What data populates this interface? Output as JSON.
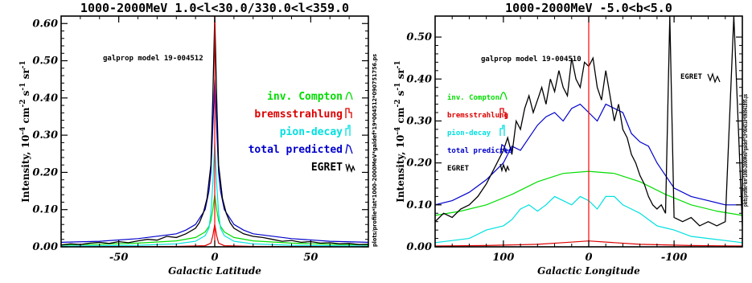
{
  "colors": {
    "inv_compton": "#00dd00",
    "bremsstrahlung": "#dd0000",
    "pion_decay": "#00e0e0",
    "total_predicted": "#0000cc",
    "egret": "#000000",
    "marker": "#ff0000"
  },
  "side_label": "plots/profile*lat*1000-2000MeV*galdef*19*004512*090751756.ps",
  "side_label_right": "plots/profile*lon*1000-2000MeV*galdef*19*004510*090941895.ps",
  "chart_data": [
    {
      "type": "line",
      "title": "1000-2000MeV   1.0<l<30.0/330.0<l<359.0",
      "model_label": "galprop model 19-004512",
      "xlabel": "Galactic Latitude",
      "ylabel": "Intensity, 10^-4 cm^-2 s^-1 sr^-1",
      "xlim": [
        -80,
        80
      ],
      "ylim": [
        0,
        0.62
      ],
      "x_reversed": false,
      "xticks": [
        -50,
        0,
        50
      ],
      "yticks": [
        0.0,
        0.1,
        0.2,
        0.3,
        0.4,
        0.5,
        0.6
      ],
      "ytick_labels": [
        "0.00",
        "0.10",
        "0.20",
        "0.30",
        "0.40",
        "0.50",
        "0.60"
      ],
      "legend": [
        "inv. Compton",
        "bremsstrahlung",
        "pion-decay",
        "total predicted",
        "EGRET"
      ],
      "legend_position": "right",
      "series": [
        {
          "name": "inv. Compton",
          "x": [
            -80,
            -60,
            -40,
            -20,
            -10,
            -5,
            -3,
            -2,
            -1,
            0,
            1,
            2,
            3,
            5,
            10,
            20,
            40,
            60,
            80
          ],
          "values": [
            0.005,
            0.007,
            0.01,
            0.016,
            0.025,
            0.04,
            0.055,
            0.07,
            0.1,
            0.14,
            0.1,
            0.07,
            0.055,
            0.04,
            0.025,
            0.016,
            0.01,
            0.007,
            0.005
          ]
        },
        {
          "name": "bremsstrahlung",
          "x": [
            -80,
            -20,
            -5,
            -2,
            -1,
            0,
            1,
            2,
            5,
            20,
            80
          ],
          "values": [
            0.0,
            0.001,
            0.003,
            0.01,
            0.03,
            0.06,
            0.03,
            0.01,
            0.003,
            0.001,
            0.0
          ]
        },
        {
          "name": "pion-decay",
          "x": [
            -80,
            -40,
            -20,
            -10,
            -5,
            -3,
            -2,
            -1,
            0,
            1,
            2,
            3,
            5,
            10,
            20,
            40,
            80
          ],
          "values": [
            0.002,
            0.004,
            0.008,
            0.015,
            0.03,
            0.05,
            0.09,
            0.17,
            0.28,
            0.17,
            0.09,
            0.05,
            0.03,
            0.015,
            0.008,
            0.004,
            0.002
          ]
        },
        {
          "name": "total predicted",
          "x": [
            -80,
            -60,
            -40,
            -20,
            -15,
            -10,
            -5,
            -3,
            -2,
            -1,
            0,
            1,
            2,
            3,
            5,
            10,
            15,
            20,
            40,
            60,
            80
          ],
          "values": [
            0.012,
            0.015,
            0.022,
            0.035,
            0.045,
            0.06,
            0.1,
            0.15,
            0.2,
            0.32,
            0.45,
            0.32,
            0.2,
            0.15,
            0.1,
            0.06,
            0.045,
            0.035,
            0.022,
            0.015,
            0.012
          ]
        },
        {
          "name": "EGRET",
          "x": [
            -80,
            -75,
            -70,
            -65,
            -60,
            -55,
            -50,
            -45,
            -40,
            -35,
            -30,
            -25,
            -20,
            -15,
            -10,
            -8,
            -6,
            -4,
            -2,
            -1,
            0,
            1,
            2,
            4,
            6,
            8,
            10,
            15,
            20,
            25,
            30,
            35,
            40,
            45,
            50,
            55,
            60,
            65,
            70,
            75,
            80
          ],
          "values": [
            0.005,
            0.008,
            0.006,
            0.01,
            0.012,
            0.009,
            0.014,
            0.011,
            0.016,
            0.02,
            0.018,
            0.028,
            0.025,
            0.035,
            0.05,
            0.065,
            0.09,
            0.13,
            0.22,
            0.4,
            0.62,
            0.4,
            0.22,
            0.13,
            0.09,
            0.065,
            0.05,
            0.035,
            0.028,
            0.025,
            0.02,
            0.015,
            0.017,
            0.012,
            0.014,
            0.01,
            0.011,
            0.008,
            0.009,
            0.006,
            0.007
          ]
        }
      ]
    },
    {
      "type": "line",
      "title": "1000-2000MeV   -5.0<b<5.0",
      "model_label": "galprop model 19-004510",
      "xlabel": "Galactic Longitude",
      "ylabel": "Intensity, 10^-4 cm^-2 s^-1 sr^-1",
      "xlim": [
        180,
        -180
      ],
      "ylim": [
        0,
        0.55
      ],
      "x_reversed": true,
      "xticks": [
        100,
        0,
        -100
      ],
      "yticks": [
        0.0,
        0.1,
        0.2,
        0.3,
        0.4,
        0.5
      ],
      "ytick_labels": [
        "0.00",
        "0.10",
        "0.20",
        "0.30",
        "0.40",
        "0.50"
      ],
      "legend": [
        "inv. Compton",
        "bremsstrahlung",
        "pion-decay",
        "total predicted",
        "EGRET"
      ],
      "legend_position": "upper-left",
      "series": [
        {
          "name": "inv. Compton",
          "x": [
            180,
            150,
            120,
            90,
            60,
            30,
            0,
            -30,
            -60,
            -90,
            -120,
            -150,
            -180
          ],
          "values": [
            0.075,
            0.085,
            0.1,
            0.125,
            0.155,
            0.175,
            0.18,
            0.175,
            0.155,
            0.125,
            0.1,
            0.085,
            0.075
          ]
        },
        {
          "name": "bremsstrahlung",
          "x": [
            180,
            120,
            60,
            30,
            0,
            -30,
            -60,
            -120,
            -180
          ],
          "values": [
            0.002,
            0.003,
            0.006,
            0.01,
            0.014,
            0.01,
            0.006,
            0.003,
            0.002
          ]
        },
        {
          "name": "pion-decay",
          "x": [
            180,
            160,
            140,
            120,
            100,
            90,
            80,
            70,
            60,
            50,
            40,
            30,
            20,
            10,
            0,
            -10,
            -20,
            -30,
            -40,
            -50,
            -60,
            -70,
            -80,
            -90,
            -100,
            -120,
            -140,
            -160,
            -180
          ],
          "values": [
            0.01,
            0.015,
            0.02,
            0.04,
            0.05,
            0.065,
            0.09,
            0.1,
            0.085,
            0.1,
            0.12,
            0.11,
            0.1,
            0.12,
            0.11,
            0.09,
            0.12,
            0.12,
            0.1,
            0.09,
            0.08,
            0.065,
            0.05,
            0.045,
            0.04,
            0.025,
            0.02,
            0.015,
            0.01
          ]
        },
        {
          "name": "total predicted",
          "x": [
            180,
            160,
            140,
            120,
            100,
            90,
            80,
            70,
            60,
            50,
            40,
            30,
            20,
            10,
            0,
            -10,
            -20,
            -30,
            -40,
            -50,
            -60,
            -70,
            -80,
            -90,
            -100,
            -120,
            -140,
            -160,
            -180
          ],
          "values": [
            0.1,
            0.11,
            0.13,
            0.16,
            0.2,
            0.24,
            0.23,
            0.26,
            0.29,
            0.31,
            0.32,
            0.3,
            0.33,
            0.34,
            0.32,
            0.3,
            0.34,
            0.33,
            0.32,
            0.27,
            0.25,
            0.24,
            0.2,
            0.17,
            0.14,
            0.12,
            0.11,
            0.1,
            0.1
          ]
        },
        {
          "name": "EGRET",
          "x": [
            180,
            170,
            160,
            150,
            140,
            130,
            120,
            110,
            100,
            95,
            90,
            85,
            80,
            75,
            70,
            65,
            60,
            55,
            50,
            45,
            40,
            35,
            30,
            25,
            20,
            15,
            10,
            5,
            0,
            -5,
            -10,
            -15,
            -20,
            -25,
            -30,
            -35,
            -40,
            -45,
            -50,
            -55,
            -60,
            -65,
            -70,
            -75,
            -80,
            -85,
            -90,
            -95,
            -100,
            -110,
            -120,
            -130,
            -140,
            -150,
            -160,
            -170,
            -180
          ],
          "values": [
            0.06,
            0.08,
            0.07,
            0.09,
            0.1,
            0.12,
            0.15,
            0.19,
            0.23,
            0.26,
            0.22,
            0.3,
            0.28,
            0.33,
            0.36,
            0.32,
            0.35,
            0.38,
            0.34,
            0.4,
            0.37,
            0.42,
            0.38,
            0.36,
            0.45,
            0.4,
            0.38,
            0.44,
            0.43,
            0.45,
            0.38,
            0.35,
            0.42,
            0.36,
            0.3,
            0.34,
            0.28,
            0.26,
            0.22,
            0.2,
            0.17,
            0.15,
            0.12,
            0.1,
            0.09,
            0.1,
            0.08,
            0.55,
            0.07,
            0.06,
            0.07,
            0.05,
            0.06,
            0.05,
            0.06,
            0.55,
            0.05
          ]
        }
      ]
    }
  ]
}
